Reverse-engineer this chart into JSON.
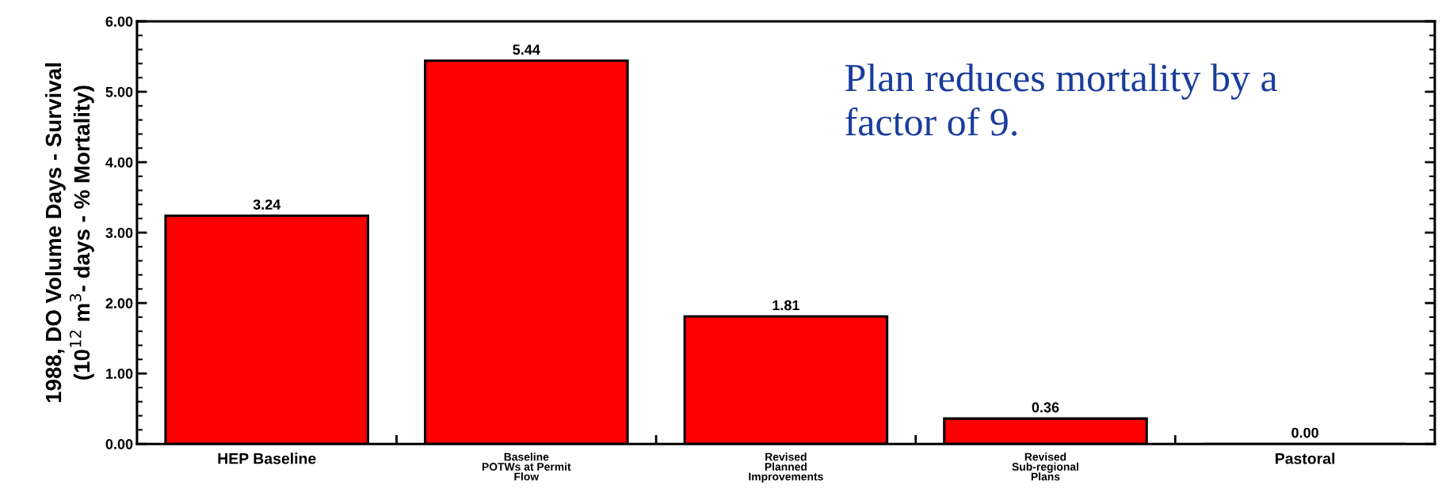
{
  "chart_data": {
    "type": "bar",
    "ylabel": "1988, DO Volume Days - Survival\n(10$^{12}$ m$^{3}$- days - % Mortality)",
    "categories": [
      "HEP Baseline",
      "Baseline\nPOTWs at Permit\nFlow",
      "Revised\nPlanned\nImprovements",
      "Revised\nSub-regional\nPlans",
      "Pastoral"
    ],
    "values": [
      3.24,
      5.44,
      1.81,
      0.36,
      0.0
    ],
    "value_labels": [
      "3.24",
      "5.44",
      "1.81",
      "0.36",
      "0.00"
    ],
    "color": "#ff0000",
    "ylim": [
      0,
      6
    ],
    "yticks": [
      {
        "value": 0,
        "label": "0.00"
      },
      {
        "value": 1,
        "label": "1.00"
      },
      {
        "value": 2,
        "label": "2.00"
      },
      {
        "value": 3,
        "label": "3.00"
      },
      {
        "value": 4,
        "label": "4.00"
      },
      {
        "value": 5,
        "label": "5.00"
      },
      {
        "value": 6,
        "label": "6.00"
      }
    ],
    "annotations": [
      "Plan reduces mortality by a\nfactor of 9."
    ],
    "grid": false,
    "legend": false
  }
}
